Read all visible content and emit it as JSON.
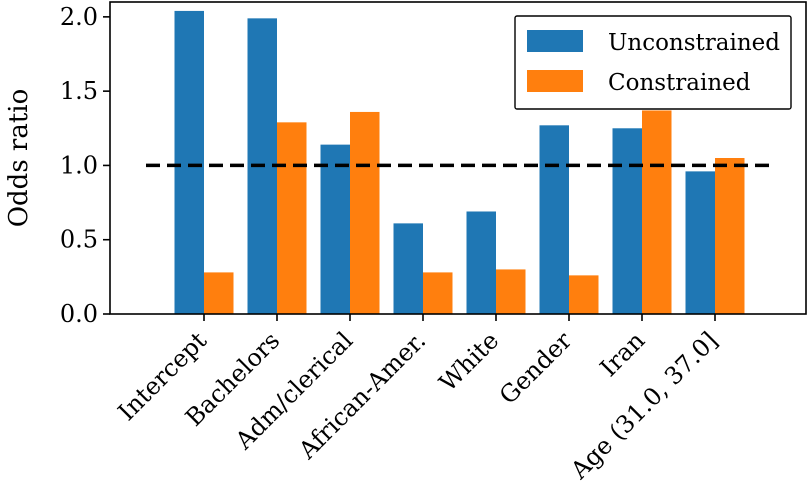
{
  "chart_data": {
    "type": "bar",
    "title": "",
    "xlabel": "",
    "ylabel": "Odds ratio",
    "categories": [
      "Intercept",
      "Bachelors",
      "Adm/clerical",
      "African-Amer.",
      "White",
      "Gender",
      "Iran",
      "Age (31.0, 37.0]"
    ],
    "series": [
      {
        "name": "Unconstrained",
        "color": "#1f77b4",
        "values": [
          2.04,
          1.99,
          1.14,
          0.61,
          0.69,
          1.27,
          1.25,
          0.96
        ]
      },
      {
        "name": "Constrained",
        "color": "#ff7f0e",
        "values": [
          0.28,
          1.29,
          1.36,
          0.28,
          0.3,
          0.26,
          1.37,
          1.05
        ]
      }
    ],
    "ylim": [
      0,
      2.1
    ],
    "yticks": [
      0.0,
      0.5,
      1.0,
      1.5,
      2.0
    ],
    "ytick_labels": [
      "0.0",
      "0.5",
      "1.0",
      "1.5",
      "2.0"
    ],
    "reference_line": {
      "y": 1.0,
      "style": "dashed",
      "color": "#000000"
    },
    "legend": "top-right",
    "grid": false
  }
}
